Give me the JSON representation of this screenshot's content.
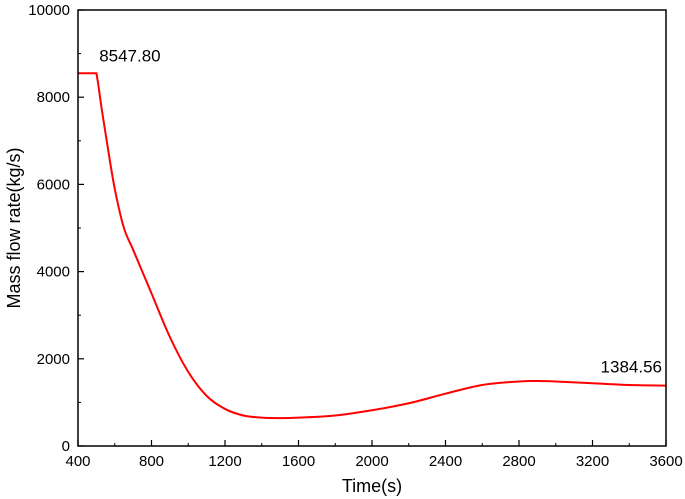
{
  "chart_data": {
    "type": "line",
    "title": "",
    "xlabel": "Time(s)",
    "ylabel": "Mass flow rate(kg/s)",
    "xlim": [
      400,
      3600
    ],
    "ylim": [
      0,
      10000
    ],
    "x_ticks": [
      400,
      800,
      1200,
      1600,
      2000,
      2400,
      2800,
      3200,
      3600
    ],
    "y_ticks": [
      0,
      2000,
      4000,
      6000,
      8000,
      10000
    ],
    "x_tick_labels": [
      "400",
      "800",
      "1200",
      "1600",
      "2000",
      "2400",
      "2800",
      "3200",
      "3600"
    ],
    "y_tick_labels": [
      "0",
      "2000",
      "4000",
      "6000",
      "8000",
      "10000"
    ],
    "grid": false,
    "legend": "none",
    "series": [
      {
        "color": "#ff0000",
        "x": [
          400,
          500,
          510,
          530,
          560,
          600,
          650,
          700,
          800,
          900,
          1000,
          1100,
          1200,
          1300,
          1400,
          1500,
          1600,
          1800,
          2000,
          2200,
          2400,
          2600,
          2800,
          2900,
          3000,
          3200,
          3400,
          3600
        ],
        "y": [
          8548,
          8548,
          8300,
          7700,
          6900,
          5900,
          5000,
          4500,
          3500,
          2500,
          1700,
          1150,
          850,
          700,
          650,
          640,
          650,
          700,
          820,
          980,
          1200,
          1400,
          1480,
          1490,
          1480,
          1440,
          1400,
          1385
        ]
      }
    ],
    "annotations": [
      {
        "text": "8547.80",
        "x": 450,
        "y": 8548
      },
      {
        "text": "1384.56",
        "x": 3600,
        "y": 1385
      }
    ]
  }
}
